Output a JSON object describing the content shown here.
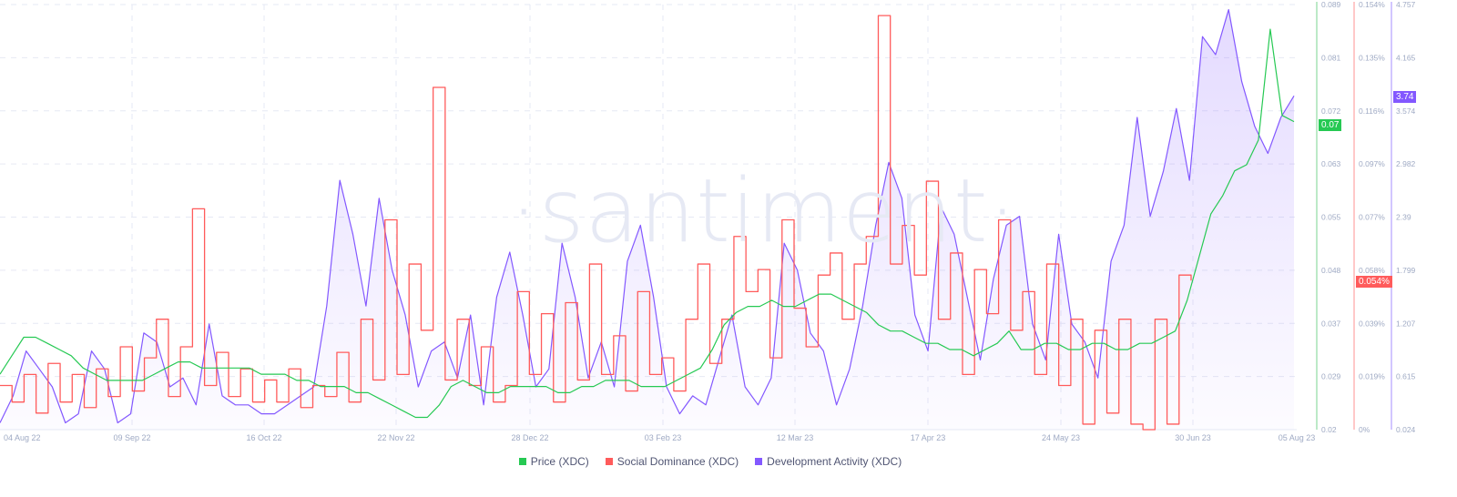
{
  "watermark": "·santiment·",
  "legend": [
    {
      "label": "Price (XDC)",
      "color": "#26c953"
    },
    {
      "label": "Social Dominance (XDC)",
      "color": "#ff5b5b"
    },
    {
      "label": "Development Activity (XDC)",
      "color": "#8358ff"
    }
  ],
  "badges": {
    "price": {
      "text": "0.07",
      "color": "#26c953"
    },
    "social": {
      "text": "0.054%",
      "color": "#ff5b5b"
    },
    "dev": {
      "text": "3.74",
      "color": "#8358ff"
    }
  },
  "chart_data": {
    "type": "line",
    "title": "",
    "xlabel": "",
    "x_ticks": [
      "04 Aug 22",
      "09 Sep 22",
      "16 Oct 22",
      "22 Nov 22",
      "28 Dec 22",
      "03 Feb 23",
      "12 Mar 23",
      "17 Apr 23",
      "24 May 23",
      "30 Jun 23",
      "05 Aug 23"
    ],
    "axes": {
      "price": {
        "label": "Price (XDC)",
        "ticks": [
          "0.089",
          "0.081",
          "0.072",
          "0.063",
          "0.055",
          "0.048",
          "0.037",
          "0.029",
          "0.02"
        ],
        "ylim": [
          0.02,
          0.089
        ]
      },
      "social": {
        "label": "Social Dominance (XDC)",
        "ticks": [
          "0.154%",
          "0.135%",
          "0.116%",
          "0.097%",
          "0.077%",
          "0.058%",
          "0.039%",
          "0.019%",
          "0%"
        ],
        "ylim": [
          0,
          0.154
        ]
      },
      "dev": {
        "label": "Development Activity (XDC)",
        "ticks": [
          "4.757",
          "4.165",
          "3.574",
          "2.982",
          "2.39",
          "1.799",
          "1.207",
          "0.615",
          "0.024"
        ],
        "ylim": [
          0.024,
          4.757
        ]
      }
    },
    "grid": true,
    "legend_position": "bottom",
    "series": [
      {
        "name": "Price (XDC)",
        "axis": "price",
        "color": "#26c953",
        "values": [
          0.029,
          0.032,
          0.035,
          0.035,
          0.034,
          0.033,
          0.032,
          0.03,
          0.029,
          0.028,
          0.028,
          0.028,
          0.028,
          0.029,
          0.03,
          0.031,
          0.031,
          0.03,
          0.03,
          0.03,
          0.03,
          0.03,
          0.029,
          0.029,
          0.029,
          0.028,
          0.028,
          0.027,
          0.027,
          0.027,
          0.026,
          0.026,
          0.025,
          0.024,
          0.023,
          0.022,
          0.022,
          0.024,
          0.027,
          0.028,
          0.027,
          0.026,
          0.026,
          0.027,
          0.027,
          0.027,
          0.027,
          0.026,
          0.026,
          0.027,
          0.027,
          0.028,
          0.028,
          0.028,
          0.027,
          0.027,
          0.027,
          0.028,
          0.029,
          0.03,
          0.033,
          0.037,
          0.039,
          0.04,
          0.04,
          0.041,
          0.04,
          0.04,
          0.041,
          0.042,
          0.042,
          0.041,
          0.04,
          0.039,
          0.037,
          0.036,
          0.036,
          0.035,
          0.034,
          0.034,
          0.033,
          0.033,
          0.032,
          0.033,
          0.034,
          0.036,
          0.033,
          0.033,
          0.034,
          0.034,
          0.033,
          0.033,
          0.034,
          0.034,
          0.033,
          0.033,
          0.034,
          0.034,
          0.035,
          0.036,
          0.041,
          0.048,
          0.055,
          0.058,
          0.062,
          0.063,
          0.067,
          0.085,
          0.071,
          0.07
        ]
      },
      {
        "name": "Social Dominance (XDC)",
        "axis": "social",
        "color": "#ff5b5b",
        "values": [
          0.016,
          0.01,
          0.02,
          0.006,
          0.024,
          0.01,
          0.02,
          0.008,
          0.022,
          0.012,
          0.03,
          0.014,
          0.026,
          0.04,
          0.012,
          0.03,
          0.08,
          0.016,
          0.028,
          0.012,
          0.022,
          0.01,
          0.018,
          0.01,
          0.022,
          0.008,
          0.016,
          0.012,
          0.028,
          0.01,
          0.04,
          0.018,
          0.076,
          0.02,
          0.06,
          0.036,
          0.124,
          0.018,
          0.04,
          0.016,
          0.03,
          0.01,
          0.016,
          0.05,
          0.02,
          0.042,
          0.01,
          0.046,
          0.018,
          0.06,
          0.02,
          0.034,
          0.014,
          0.05,
          0.02,
          0.026,
          0.014,
          0.04,
          0.06,
          0.024,
          0.04,
          0.07,
          0.05,
          0.058,
          0.026,
          0.076,
          0.044,
          0.03,
          0.056,
          0.064,
          0.04,
          0.06,
          0.07,
          0.15,
          0.06,
          0.074,
          0.056,
          0.09,
          0.04,
          0.064,
          0.02,
          0.058,
          0.042,
          0.076,
          0.036,
          0.05,
          0.02,
          0.06,
          0.016,
          0.04,
          0.002,
          0.036,
          0.006,
          0.04,
          0.002,
          0.0,
          0.04,
          0.002,
          0.056,
          0.054
        ]
      },
      {
        "name": "Development Activity (XDC)",
        "axis": "dev",
        "color": "#8358ff",
        "values": [
          0.1,
          0.4,
          0.9,
          0.7,
          0.5,
          0.1,
          0.2,
          0.9,
          0.7,
          0.1,
          0.2,
          1.1,
          1.0,
          0.5,
          0.6,
          0.3,
          1.2,
          0.4,
          0.3,
          0.3,
          0.2,
          0.2,
          0.3,
          0.4,
          0.5,
          1.4,
          2.8,
          2.2,
          1.4,
          2.6,
          1.8,
          1.3,
          0.5,
          0.9,
          1.0,
          0.6,
          1.3,
          0.3,
          1.5,
          2.0,
          1.3,
          0.5,
          0.7,
          2.1,
          1.5,
          0.6,
          1.0,
          0.5,
          1.9,
          2.3,
          1.5,
          0.5,
          0.2,
          0.4,
          0.3,
          0.8,
          1.3,
          0.5,
          0.3,
          0.6,
          2.1,
          1.8,
          1.1,
          0.9,
          0.3,
          0.7,
          1.4,
          2.3,
          3.0,
          2.6,
          1.3,
          0.9,
          2.5,
          2.2,
          1.5,
          0.8,
          1.7,
          2.3,
          2.4,
          1.2,
          0.8,
          2.2,
          1.2,
          1.0,
          0.6,
          1.9,
          2.3,
          3.5,
          2.4,
          2.9,
          3.6,
          2.8,
          4.4,
          4.2,
          4.7,
          3.9,
          3.4,
          3.1,
          3.5,
          3.74
        ]
      }
    ]
  }
}
